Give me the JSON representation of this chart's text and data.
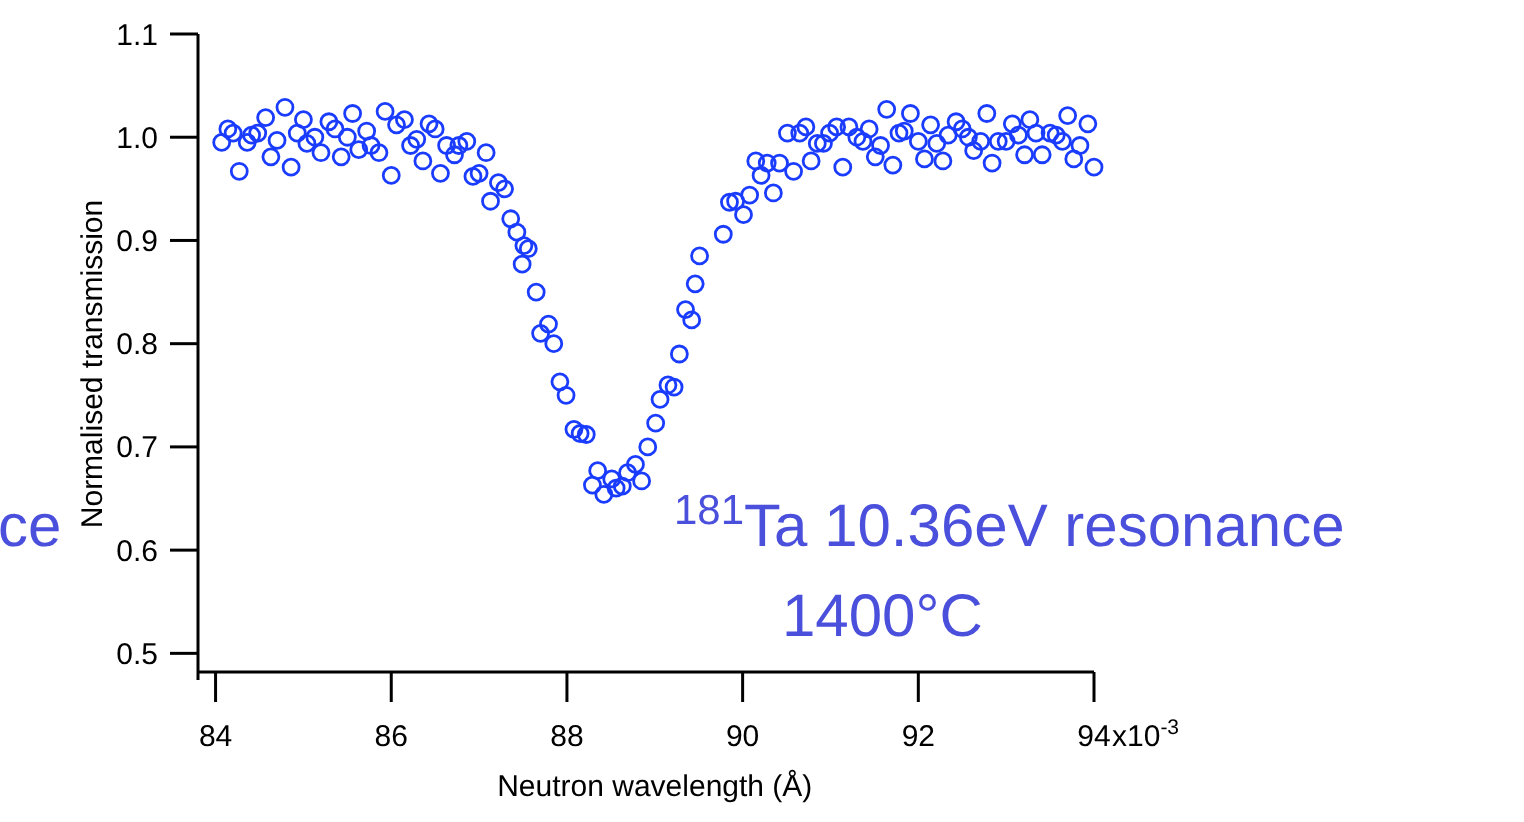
{
  "chart_data": {
    "type": "scatter",
    "xlabel": "Neutron wavelength (Å)",
    "ylabel": "Normalised transmission",
    "xlim": [
      83.8,
      94
    ],
    "ylim": [
      0.48,
      1.1
    ],
    "xticks": [
      84,
      86,
      88,
      90,
      92,
      94
    ],
    "yticks": [
      0.5,
      0.6,
      0.7,
      0.8,
      0.9,
      {
        "value": 1,
        "label": "1.0"
      },
      1.1
    ],
    "grid": false,
    "marker": "circle",
    "annotations": [
      "$^{181}$Ta 10.36eV resonance",
      "1400°C",
      "ce",
      "x10$^{-3}$"
    ],
    "series": [
      {
        "color": "#1a3cff",
        "x": [
          84.07,
          84.14,
          84.2,
          84.27,
          84.36,
          84.41,
          84.48,
          84.57,
          84.63,
          84.7,
          84.79,
          84.86,
          84.93,
          85.0,
          85.04,
          85.13,
          85.2,
          85.29,
          85.36,
          85.43,
          85.5,
          85.56,
          85.63,
          85.72,
          85.77,
          85.86,
          85.93,
          86.0,
          86.06,
          86.15,
          86.22,
          86.29,
          86.36,
          86.43,
          86.5,
          86.56,
          86.63,
          86.72,
          86.77,
          86.86,
          86.93,
          87.0,
          87.08,
          87.13,
          87.22,
          87.29,
          87.36,
          87.43,
          87.51,
          87.56,
          87.49,
          87.65,
          87.79,
          87.7,
          87.85,
          87.92,
          87.99,
          88.08,
          88.15,
          88.22,
          88.35,
          88.29,
          88.42,
          88.51,
          88.56,
          88.63,
          88.69,
          88.78,
          88.85,
          88.92,
          89.01,
          89.06,
          89.15,
          89.22,
          89.28,
          89.42,
          89.35,
          89.46,
          89.51,
          89.78,
          89.85,
          89.92,
          90.01,
          90.08,
          90.15,
          90.21,
          90.28,
          90.35,
          90.42,
          90.51,
          90.58,
          90.65,
          90.72,
          90.78,
          90.85,
          90.92,
          90.99,
          91.07,
          91.14,
          91.21,
          91.3,
          91.37,
          91.44,
          91.51,
          91.57,
          91.64,
          91.71,
          91.78,
          91.84,
          91.91,
          92.0,
          92.07,
          92.14,
          92.21,
          92.28,
          92.34,
          92.43,
          92.5,
          92.57,
          92.63,
          92.71,
          92.78,
          92.84,
          92.91,
          93.0,
          93.07,
          93.14,
          93.21,
          93.27,
          93.34,
          93.41,
          93.5,
          93.57,
          93.64,
          93.7,
          93.77,
          93.84,
          93.93,
          94.0
        ],
        "values": [
          0.995,
          1.008,
          1.004,
          0.967,
          0.995,
          1.002,
          1.004,
          1.019,
          0.981,
          0.997,
          1.029,
          0.971,
          1.004,
          1.017,
          0.994,
          1.0,
          0.985,
          1.015,
          1.008,
          0.981,
          1.0,
          1.023,
          0.988,
          1.006,
          0.992,
          0.985,
          1.025,
          0.963,
          1.012,
          1.017,
          0.992,
          0.998,
          0.977,
          1.013,
          1.008,
          0.965,
          0.992,
          0.983,
          0.992,
          0.996,
          0.962,
          0.965,
          0.985,
          0.938,
          0.956,
          0.95,
          0.921,
          0.908,
          0.895,
          0.892,
          0.877,
          0.85,
          0.819,
          0.81,
          0.8,
          0.763,
          0.75,
          0.717,
          0.713,
          0.712,
          0.677,
          0.663,
          0.654,
          0.669,
          0.66,
          0.662,
          0.675,
          0.683,
          0.667,
          0.7,
          0.723,
          0.746,
          0.76,
          0.758,
          0.79,
          0.823,
          0.833,
          0.858,
          0.885,
          0.906,
          0.937,
          0.938,
          0.925,
          0.944,
          0.977,
          0.963,
          0.975,
          0.946,
          0.975,
          1.004,
          0.967,
          1.004,
          1.01,
          0.977,
          0.994,
          0.994,
          1.004,
          1.01,
          0.971,
          1.01,
          1.0,
          0.996,
          1.008,
          0.981,
          0.992,
          1.027,
          0.973,
          1.004,
          1.006,
          1.023,
          0.996,
          0.979,
          1.012,
          0.994,
          0.977,
          1.002,
          1.015,
          1.008,
          1.0,
          0.987,
          0.996,
          1.023,
          0.975,
          0.996,
          0.996,
          1.013,
          1.002,
          0.983,
          1.017,
          1.004,
          0.983,
          1.004,
          1.002,
          0.996,
          1.021,
          0.979,
          0.992,
          1.013,
          0.971
        ]
      }
    ]
  }
}
